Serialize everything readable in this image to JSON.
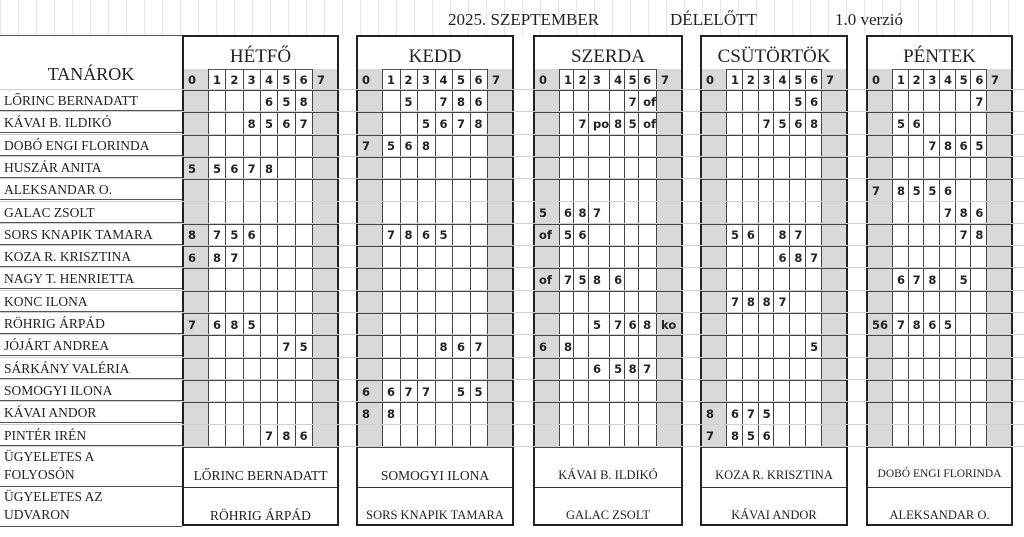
{
  "header": {
    "date": "2025. SZEPTEMBER",
    "shift": "DÉLELŐTT",
    "version": "1.0 verzió"
  },
  "teachers_header": "TANÁROK",
  "periods": [
    "0",
    "1",
    "2",
    "3",
    "4",
    "5",
    "6",
    "7"
  ],
  "days": [
    {
      "name": "HÉTFŐ",
      "corridor": "LŐRINC BERNADATT",
      "yard": "RÖHRIG ÁRPÁD"
    },
    {
      "name": "KEDD",
      "corridor": "SOMOGYI ILONA",
      "yard": "SORS KNAPIK TAMARA"
    },
    {
      "name": "SZERDA",
      "corridor": "KÁVAI B. ILDIKÓ",
      "yard": "GALAC ZSOLT"
    },
    {
      "name": "CSÜTÖRTÖK",
      "corridor": "KOZA R. KRISZTINA",
      "yard": "KÁVAI ANDOR"
    },
    {
      "name": "PÉNTEK",
      "corridor": "DOBÓ ENGI FLORINDA",
      "yard": "ALEKSANDAR O."
    }
  ],
  "duty_labels": {
    "corridor": [
      "ÜGYELETES A",
      "FOLYOSÓN"
    ],
    "yard": [
      "ÜGYELETES AZ",
      "UDVARON"
    ]
  },
  "teachers": [
    {
      "name": "LŐRINC BERNADATT",
      "schedule": [
        [
          "",
          "",
          "",
          "",
          "6",
          "5",
          "8",
          ""
        ],
        [
          "",
          "",
          "5",
          "",
          "7",
          "8",
          "6",
          ""
        ],
        [
          "",
          "",
          "",
          "",
          "",
          "7",
          "of",
          ""
        ],
        [
          "",
          "",
          "",
          "",
          "",
          "5",
          "6",
          ""
        ],
        [
          "",
          "",
          "",
          "",
          "",
          "",
          "7",
          ""
        ]
      ]
    },
    {
      "name": "KÁVAI B. ILDIKÓ",
      "schedule": [
        [
          "",
          "",
          "",
          "8",
          "5",
          "6",
          "7",
          ""
        ],
        [
          "",
          "",
          "",
          "5",
          "6",
          "7",
          "8",
          ""
        ],
        [
          "",
          "",
          "7",
          "po",
          "8",
          "5",
          "of",
          ""
        ],
        [
          "",
          "",
          "",
          "7",
          "5",
          "6",
          "8",
          ""
        ],
        [
          "",
          "5",
          "6",
          "",
          "",
          "",
          "",
          ""
        ]
      ]
    },
    {
      "name": "DOBÓ ENGI FLORINDA",
      "schedule": [
        [
          "",
          "",
          "",
          "",
          "",
          "",
          "",
          ""
        ],
        [
          "7",
          "5",
          "6",
          "8",
          "",
          "",
          "",
          ""
        ],
        [
          "",
          "",
          "",
          "",
          "",
          "",
          "",
          ""
        ],
        [
          "",
          "",
          "",
          "",
          "",
          "",
          "",
          ""
        ],
        [
          "",
          "",
          "",
          "7",
          "8",
          "6",
          "5",
          ""
        ]
      ]
    },
    {
      "name": "HUSZÁR ANITA",
      "schedule": [
        [
          "5",
          "5",
          "6",
          "7",
          "8",
          "",
          "",
          ""
        ],
        [
          "",
          "",
          "",
          "",
          "",
          "",
          "",
          ""
        ],
        [
          "",
          "",
          "",
          "",
          "",
          "",
          "",
          ""
        ],
        [
          "",
          "",
          "",
          "",
          "",
          "",
          "",
          ""
        ],
        [
          "",
          "",
          "",
          "",
          "",
          "",
          "",
          ""
        ]
      ]
    },
    {
      "name": "ALEKSANDAR O.",
      "schedule": [
        [
          "",
          "",
          "",
          "",
          "",
          "",
          "",
          ""
        ],
        [
          "",
          "",
          "",
          "",
          "",
          "",
          "",
          ""
        ],
        [
          "",
          "",
          "",
          "",
          "",
          "",
          "",
          ""
        ],
        [
          "",
          "",
          "",
          "",
          "",
          "",
          "",
          ""
        ],
        [
          "7",
          "8",
          "5",
          "5",
          "6",
          "",
          "",
          ""
        ]
      ]
    },
    {
      "name": "GALAC ZSOLT",
      "schedule": [
        [
          "",
          "",
          "",
          "",
          "",
          "",
          "",
          ""
        ],
        [
          "",
          "",
          "",
          "",
          "",
          "",
          "",
          ""
        ],
        [
          "5",
          "6",
          "8",
          "7",
          "",
          "",
          "",
          ""
        ],
        [
          "",
          "",
          "",
          "",
          "",
          "",
          "",
          ""
        ],
        [
          "",
          "",
          "",
          "",
          "7",
          "8",
          "6",
          ""
        ]
      ]
    },
    {
      "name": "SORS KNAPIK TAMARA",
      "schedule": [
        [
          "8",
          "7",
          "5",
          "6",
          "",
          "",
          "",
          ""
        ],
        [
          "",
          "7",
          "8",
          "6",
          "5",
          "",
          "",
          ""
        ],
        [
          "of",
          "5",
          "6",
          "",
          "",
          "",
          "",
          ""
        ],
        [
          "",
          "5",
          "6",
          "",
          "8",
          "7",
          "",
          ""
        ],
        [
          "",
          "",
          "",
          "",
          "",
          "7",
          "8",
          ""
        ]
      ]
    },
    {
      "name": "KOZA R. KRISZTINA",
      "schedule": [
        [
          "6",
          "8",
          "7",
          "",
          "",
          "",
          "",
          ""
        ],
        [
          "",
          "",
          "",
          "",
          "",
          "",
          "",
          ""
        ],
        [
          "",
          "",
          "",
          "",
          "",
          "",
          "",
          ""
        ],
        [
          "",
          "",
          "",
          "",
          "6",
          "8",
          "7",
          ""
        ],
        [
          "",
          "",
          "",
          "",
          "",
          "",
          "",
          ""
        ]
      ]
    },
    {
      "name": "NAGY T. HENRIETTA",
      "schedule": [
        [
          "",
          "",
          "",
          "",
          "",
          "",
          "",
          ""
        ],
        [
          "",
          "",
          "",
          "",
          "",
          "",
          "",
          ""
        ],
        [
          "of",
          "7",
          "5",
          "8",
          "6",
          "",
          "",
          ""
        ],
        [
          "",
          "",
          "",
          "",
          "",
          "",
          "",
          ""
        ],
        [
          "",
          "6",
          "7",
          "8",
          "",
          "5",
          "",
          ""
        ]
      ]
    },
    {
      "name": "KONC ILONA",
      "schedule": [
        [
          "",
          "",
          "",
          "",
          "",
          "",
          "",
          ""
        ],
        [
          "",
          "",
          "",
          "",
          "",
          "",
          "",
          ""
        ],
        [
          "",
          "",
          "",
          "",
          "",
          "",
          "",
          ""
        ],
        [
          "",
          "7",
          "8",
          "8",
          "7",
          "",
          "",
          ""
        ],
        [
          "",
          "",
          "",
          "",
          "",
          "",
          "",
          ""
        ]
      ]
    },
    {
      "name": "RÖHRIG ÁRPÁD",
      "schedule": [
        [
          "7",
          "6",
          "8",
          "5",
          "",
          "",
          "",
          ""
        ],
        [
          "",
          "",
          "",
          "",
          "",
          "",
          "",
          ""
        ],
        [
          "",
          "",
          "",
          "5",
          "7",
          "6",
          "8",
          "ko"
        ],
        [
          "",
          "",
          "",
          "",
          "",
          "",
          "",
          ""
        ],
        [
          "56",
          "7",
          "8",
          "6",
          "5",
          "",
          "",
          ""
        ]
      ]
    },
    {
      "name": "JÓJÁRT ANDREA",
      "schedule": [
        [
          "",
          "",
          "",
          "",
          "",
          "7",
          "5",
          ""
        ],
        [
          "",
          "",
          "",
          "",
          "8",
          "6",
          "7",
          ""
        ],
        [
          "6",
          "8",
          "",
          "",
          "",
          "",
          "",
          ""
        ],
        [
          "",
          "",
          "",
          "",
          "",
          "",
          "5",
          ""
        ],
        [
          "",
          "",
          "",
          "",
          "",
          "",
          "",
          ""
        ]
      ]
    },
    {
      "name": "SÁRKÁNY VALÉRIA",
      "schedule": [
        [
          "",
          "",
          "",
          "",
          "",
          "",
          "",
          ""
        ],
        [
          "",
          "",
          "",
          "",
          "",
          "",
          "",
          ""
        ],
        [
          "",
          "",
          "",
          "6",
          "5",
          "8",
          "7",
          ""
        ],
        [
          "",
          "",
          "",
          "",
          "",
          "",
          "",
          ""
        ],
        [
          "",
          "",
          "",
          "",
          "",
          "",
          "",
          ""
        ]
      ]
    },
    {
      "name": "SOMOGYI ILONA",
      "schedule": [
        [
          "",
          "",
          "",
          "",
          "",
          "",
          "",
          ""
        ],
        [
          "6",
          "6",
          "7",
          "7",
          "",
          "5",
          "5",
          ""
        ],
        [
          "",
          "",
          "",
          "",
          "",
          "",
          "",
          ""
        ],
        [
          "",
          "",
          "",
          "",
          "",
          "",
          "",
          ""
        ],
        [
          "",
          "",
          "",
          "",
          "",
          "",
          "",
          ""
        ]
      ]
    },
    {
      "name": "KÁVAI ANDOR",
      "schedule": [
        [
          "",
          "",
          "",
          "",
          "",
          "",
          "",
          ""
        ],
        [
          "8",
          "8",
          "",
          "",
          "",
          "",
          "",
          ""
        ],
        [
          "",
          "",
          "",
          "",
          "",
          "",
          "",
          ""
        ],
        [
          "8",
          "6",
          "7",
          "5",
          "",
          "",
          "",
          ""
        ],
        [
          "",
          "",
          "",
          "",
          "",
          "",
          "",
          ""
        ]
      ]
    },
    {
      "name": "PINTÉR IRÉN",
      "schedule": [
        [
          "",
          "",
          "",
          "",
          "7",
          "8",
          "6",
          ""
        ],
        [
          "",
          "",
          "",
          "",
          "",
          "",
          "",
          ""
        ],
        [
          "",
          "",
          "",
          "",
          "",
          "",
          "",
          ""
        ],
        [
          "7",
          "8",
          "5",
          "6",
          "",
          "",
          "",
          ""
        ],
        [
          "",
          "",
          "",
          "",
          "",
          "",
          "",
          ""
        ]
      ]
    }
  ]
}
